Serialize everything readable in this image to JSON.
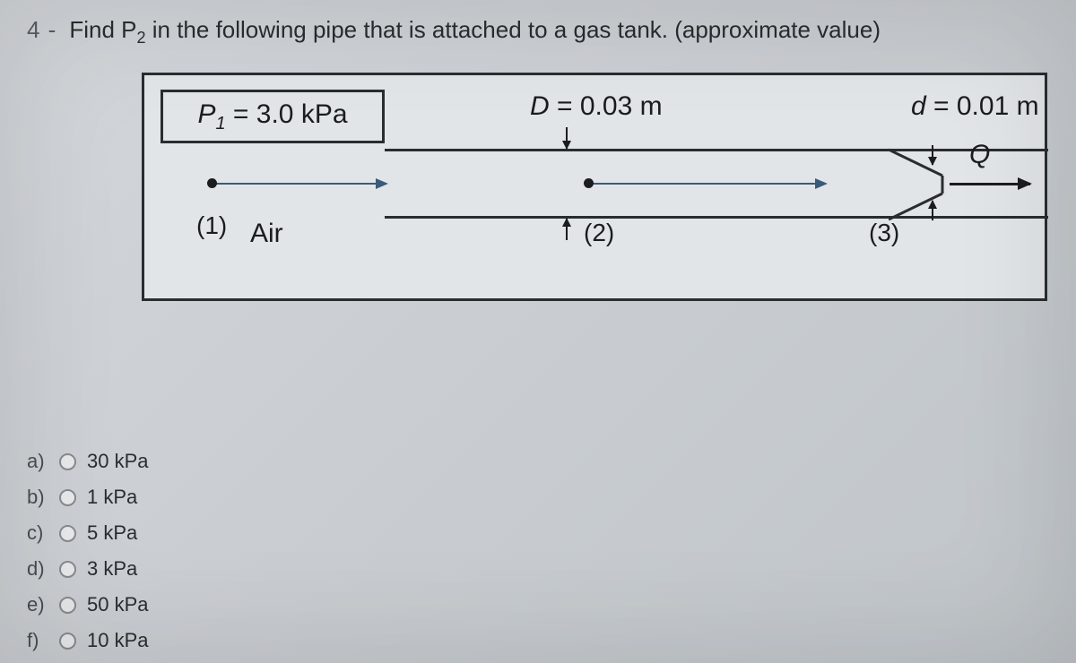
{
  "question": {
    "number": "4 -",
    "text_prefix": "Find P",
    "text_sub": "2",
    "text_suffix": " in the following pipe that is attached to a gas tank. (approximate value)"
  },
  "diagram": {
    "p1_prefix": "P",
    "p1_sub": "1",
    "p1_eq": " = 3.0  kPa",
    "D_label": "D = 0.03 m",
    "d_label": "d = 0.01 m",
    "air": "Air",
    "pt1": "(1)",
    "pt2": "(2)",
    "pt3": "(3)",
    "Q": "Q",
    "colors": {
      "border": "#2a2d30",
      "flow_arrow": "#3a5a7a",
      "bg": "#e2e5e8"
    }
  },
  "options": [
    {
      "key": "a)",
      "label": "30 kPa"
    },
    {
      "key": "b)",
      "label": "1 kPa"
    },
    {
      "key": "c)",
      "label": "5 kPa"
    },
    {
      "key": "d)",
      "label": "3 kPa"
    },
    {
      "key": "e)",
      "label": "50 kPa"
    },
    {
      "key": "f)",
      "label": "10 kPa"
    }
  ]
}
